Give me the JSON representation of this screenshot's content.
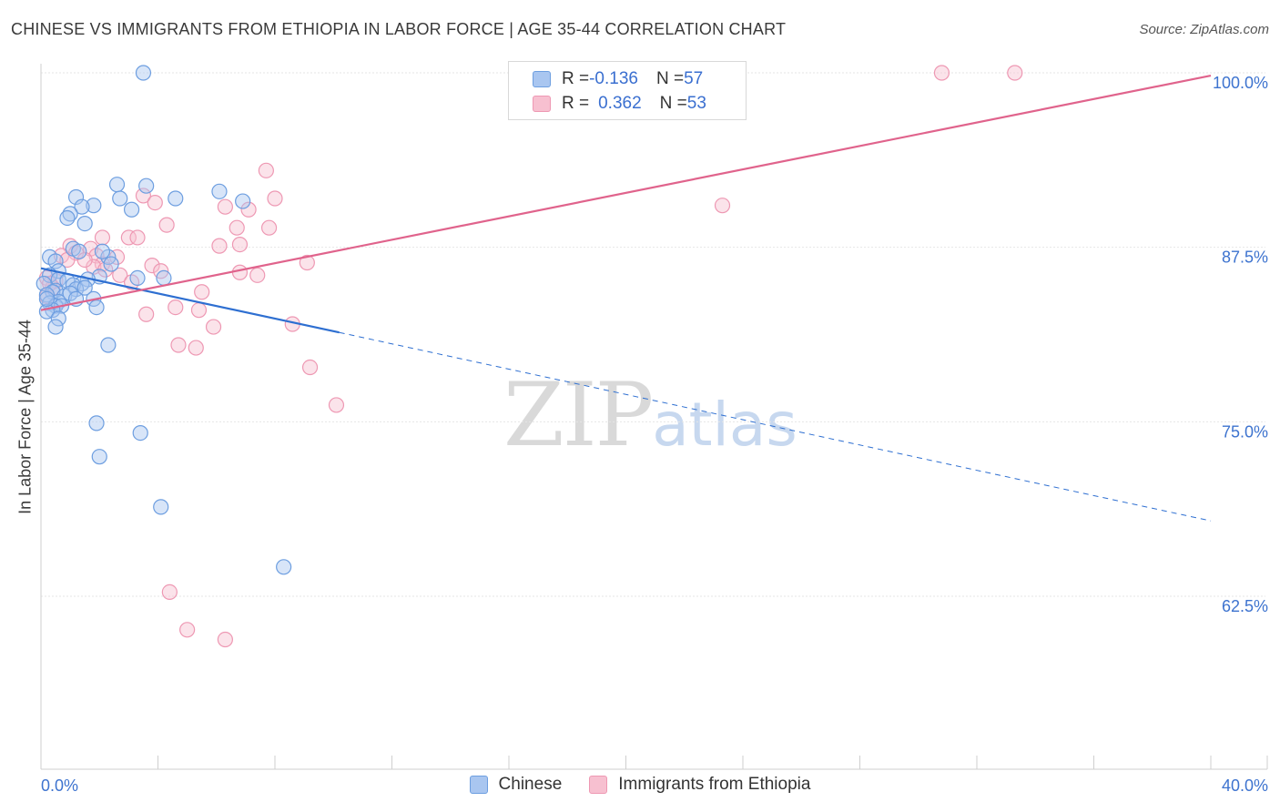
{
  "title": "CHINESE VS IMMIGRANTS FROM ETHIOPIA IN LABOR FORCE | AGE 35-44 CORRELATION CHART",
  "source": "Source: ZipAtlas.com",
  "watermark": {
    "zip": "ZIP",
    "atlas": "atlas"
  },
  "legend": {
    "chinese": {
      "r_label": "R = ",
      "r_value": "-0.136",
      "n_label": "N = ",
      "n_value": "57"
    },
    "ethiopia": {
      "r_label": "R = ",
      "r_value": "0.362",
      "n_label": "N = ",
      "n_value": "53"
    }
  },
  "colors": {
    "chinese_fill": "#a9c6f0",
    "chinese_stroke": "#6d9ee0",
    "chinese_line": "#2e6fd1",
    "ethiopia_fill": "#f7c0d0",
    "ethiopia_stroke": "#ee98b3",
    "ethiopia_line": "#e0638c",
    "tick_label": "#3d73cf",
    "grid": "#e6e6e6"
  },
  "chart_data": {
    "type": "scatter",
    "title": "CHINESE VS IMMIGRANTS FROM ETHIOPIA IN LABOR FORCE | AGE 35-44 CORRELATION CHART",
    "xlabel": "",
    "ylabel": "In Labor Force | Age 35-44",
    "xlim": [
      0,
      40
    ],
    "ylim": [
      50,
      101.5
    ],
    "x_tick_labels": [
      "0.0%",
      "40.0%"
    ],
    "y_ticks": [
      62.5,
      75.0,
      87.5,
      100.0
    ],
    "y_tick_labels": [
      "62.5%",
      "75.0%",
      "87.5%",
      "100.0%"
    ],
    "x_minor_ticks": [
      0,
      4,
      8,
      12,
      16,
      20,
      24,
      28,
      32,
      36,
      40
    ],
    "series": [
      {
        "name": "Chinese",
        "r": -0.136,
        "n": 57,
        "trend": {
          "x0": 0.0,
          "y0": 86.0,
          "x1": 10.2,
          "y1": 81.4,
          "dash_to_x": 40.0,
          "dash_to_y": 67.9
        },
        "points": [
          [
            3.5,
            100.0
          ],
          [
            2.6,
            92.0
          ],
          [
            3.6,
            91.9
          ],
          [
            6.1,
            91.5
          ],
          [
            1.2,
            91.1
          ],
          [
            4.6,
            91.0
          ],
          [
            2.7,
            91.0
          ],
          [
            6.9,
            90.8
          ],
          [
            1.8,
            90.5
          ],
          [
            1.4,
            90.4
          ],
          [
            3.1,
            90.2
          ],
          [
            1.0,
            89.9
          ],
          [
            0.9,
            89.6
          ],
          [
            1.5,
            89.2
          ],
          [
            0.3,
            86.8
          ],
          [
            1.1,
            87.4
          ],
          [
            1.3,
            87.2
          ],
          [
            2.3,
            86.8
          ],
          [
            2.1,
            87.2
          ],
          [
            0.5,
            86.5
          ],
          [
            2.4,
            86.3
          ],
          [
            0.6,
            85.8
          ],
          [
            0.3,
            85.5
          ],
          [
            2.0,
            85.4
          ],
          [
            3.3,
            85.3
          ],
          [
            4.2,
            85.3
          ],
          [
            0.6,
            85.2
          ],
          [
            0.9,
            85.1
          ],
          [
            1.6,
            85.2
          ],
          [
            1.4,
            84.9
          ],
          [
            0.1,
            84.9
          ],
          [
            1.1,
            84.8
          ],
          [
            1.2,
            84.5
          ],
          [
            1.5,
            84.6
          ],
          [
            0.5,
            84.4
          ],
          [
            0.4,
            84.3
          ],
          [
            0.2,
            84.1
          ],
          [
            0.8,
            84.0
          ],
          [
            1.0,
            84.2
          ],
          [
            1.8,
            83.8
          ],
          [
            0.6,
            83.6
          ],
          [
            1.2,
            83.8
          ],
          [
            0.3,
            83.5
          ],
          [
            0.5,
            83.3
          ],
          [
            1.9,
            83.2
          ],
          [
            0.7,
            83.3
          ],
          [
            0.4,
            83.0
          ],
          [
            0.2,
            82.9
          ],
          [
            0.6,
            82.4
          ],
          [
            0.5,
            81.8
          ],
          [
            2.3,
            80.5
          ],
          [
            1.9,
            74.9
          ],
          [
            3.4,
            74.2
          ],
          [
            2.0,
            72.5
          ],
          [
            4.1,
            68.9
          ],
          [
            8.3,
            64.6
          ],
          [
            0.2,
            83.8
          ]
        ]
      },
      {
        "name": "Immigrants from Ethiopia",
        "r": 0.362,
        "n": 53,
        "trend": {
          "x0": 0.0,
          "y0": 83.0,
          "x1": 40.0,
          "y1": 99.8
        },
        "points": [
          [
            30.8,
            100.0
          ],
          [
            33.3,
            100.0
          ],
          [
            7.7,
            93.0
          ],
          [
            3.5,
            91.2
          ],
          [
            8.0,
            91.0
          ],
          [
            3.9,
            90.7
          ],
          [
            6.3,
            90.4
          ],
          [
            7.1,
            90.2
          ],
          [
            23.3,
            90.5
          ],
          [
            4.3,
            89.1
          ],
          [
            6.7,
            88.9
          ],
          [
            7.8,
            88.9
          ],
          [
            2.1,
            88.2
          ],
          [
            3.0,
            88.2
          ],
          [
            3.3,
            88.2
          ],
          [
            6.1,
            87.6
          ],
          [
            6.8,
            87.7
          ],
          [
            1.0,
            87.6
          ],
          [
            1.7,
            87.4
          ],
          [
            1.2,
            87.1
          ],
          [
            0.7,
            86.9
          ],
          [
            1.9,
            86.9
          ],
          [
            2.6,
            86.8
          ],
          [
            0.9,
            86.6
          ],
          [
            2.1,
            86.3
          ],
          [
            9.1,
            86.4
          ],
          [
            3.8,
            86.2
          ],
          [
            1.8,
            86.1
          ],
          [
            4.1,
            85.8
          ],
          [
            6.8,
            85.7
          ],
          [
            7.4,
            85.5
          ],
          [
            2.7,
            85.5
          ],
          [
            3.1,
            85.0
          ],
          [
            0.2,
            85.3
          ],
          [
            0.5,
            85.1
          ],
          [
            0.4,
            84.6
          ],
          [
            5.5,
            84.3
          ],
          [
            0.2,
            84.0
          ],
          [
            4.6,
            83.2
          ],
          [
            5.4,
            83.0
          ],
          [
            3.6,
            82.7
          ],
          [
            8.6,
            82.0
          ],
          [
            5.9,
            81.8
          ],
          [
            4.7,
            80.5
          ],
          [
            5.3,
            80.3
          ],
          [
            9.2,
            78.9
          ],
          [
            10.1,
            76.2
          ],
          [
            4.4,
            62.8
          ],
          [
            5.0,
            60.1
          ],
          [
            6.3,
            59.4
          ],
          [
            0.3,
            84.9
          ],
          [
            1.5,
            86.6
          ],
          [
            2.2,
            85.9
          ]
        ]
      }
    ]
  },
  "bottom_legend": [
    {
      "label": "Chinese"
    },
    {
      "label": "Immigrants from Ethiopia"
    }
  ]
}
